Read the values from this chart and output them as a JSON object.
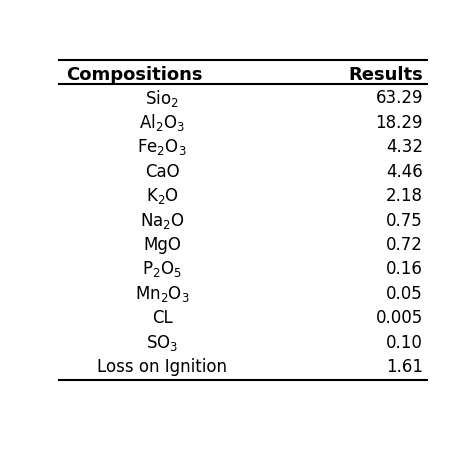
{
  "header": [
    "Compositions",
    "Results"
  ],
  "rows": [
    [
      "Sio$_2$",
      "63.29"
    ],
    [
      "Al$_2$O$_3$",
      "18.29"
    ],
    [
      "Fe$_2$O$_3$",
      "4.32"
    ],
    [
      "CaO",
      "4.46"
    ],
    [
      "K$_2$O",
      "2.18"
    ],
    [
      "Na$_2$O",
      "0.75"
    ],
    [
      "MgO",
      "0.72"
    ],
    [
      "P$_2$O$_5$",
      "0.16"
    ],
    [
      "Mn$_2$O$_3$",
      "0.05"
    ],
    [
      "CL",
      "0.005"
    ],
    [
      "SO$_3$",
      "0.10"
    ],
    [
      "Loss on Ignition",
      "1.61"
    ]
  ],
  "background_color": "#ffffff",
  "text_color": "#000000",
  "header_fontsize": 13,
  "row_fontsize": 12,
  "fig_width": 4.74,
  "fig_height": 4.6
}
